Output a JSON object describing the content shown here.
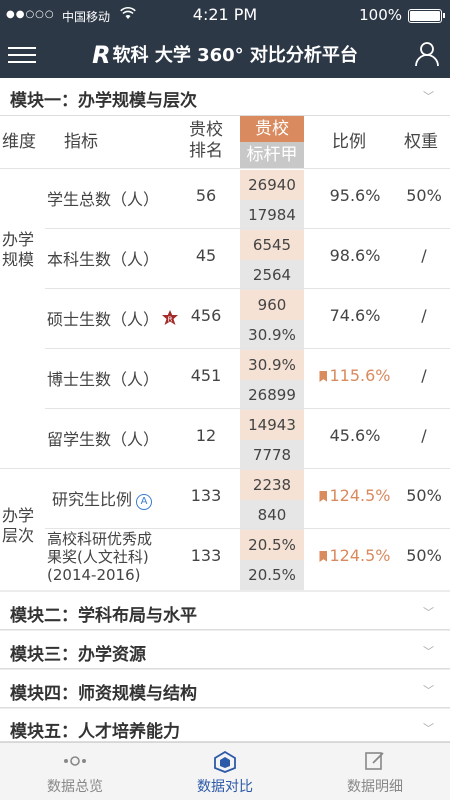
{
  "status_bar": {
    "signal": "●●○○○",
    "carrier": "中国移动",
    "time": "4:21 PM",
    "battery": "100%"
  },
  "nav": {
    "logo_letter": "R",
    "title": "软科 大学 360° 对比分析平台"
  },
  "modules": [
    {
      "title": "模块一：办学规模与层次"
    },
    {
      "title": "模块二：学科布局与水平"
    },
    {
      "title": "模块三：办学资源"
    },
    {
      "title": "模块四：师资规模与结构"
    },
    {
      "title": "模块五：人才培养能力"
    }
  ],
  "table": {
    "headers": {
      "dimension": "维度",
      "indicator": "指标",
      "rank_line1": "贵校",
      "rank_line2": "排名",
      "ours": "贵校",
      "benchmark": "标杆甲",
      "ratio": "比例",
      "weight": "权重"
    },
    "dimensions": [
      {
        "line1": "办学",
        "line2": "规模"
      },
      {
        "line1": "办学",
        "line2": "层次"
      }
    ],
    "rows": [
      {
        "indicator": "学生总数（人）",
        "rank": "56",
        "ours": "26940",
        "benchmark": "17984",
        "ratio": "95.6%",
        "weight": "50%"
      },
      {
        "indicator": "本科生数（人）",
        "rank": "45",
        "ours": "6545",
        "benchmark": "2564",
        "ratio": "98.6%",
        "weight": "/"
      },
      {
        "indicator": "硕士生数（人）",
        "rank": "456",
        "ours": "960",
        "benchmark": "30.9%",
        "ratio": "74.6%",
        "weight": "/"
      },
      {
        "indicator": "博士生数（人）",
        "rank": "451",
        "ours": "30.9%",
        "benchmark": "26899",
        "ratio": "115.6%",
        "weight": "/"
      },
      {
        "indicator": "留学生数（人）",
        "rank": "12",
        "ours": "14943",
        "benchmark": "7778",
        "ratio": "45.6%",
        "weight": "/"
      },
      {
        "indicator": "研究生比例",
        "rank": "133",
        "ours": "2238",
        "benchmark": "840",
        "ratio": "124.5%",
        "weight": "50%"
      },
      {
        "indicator_line1": "高校科研优秀成",
        "indicator_line2": "果奖(人文社科)",
        "indicator_line3": "(2014-2016)",
        "rank": "133",
        "ours": "20.5%",
        "benchmark": "20.5%",
        "ratio": "124.5%",
        "weight": "50%"
      }
    ],
    "badge_letters": {
      "red": "R",
      "blue": "A"
    }
  },
  "tabs": [
    {
      "label": "数据总览"
    },
    {
      "label": "数据对比"
    },
    {
      "label": "数据明细"
    }
  ],
  "colors": {
    "header_bg": "#2d3847",
    "accent_orange": "#d98a5e",
    "ours_bg": "#f5e2d5",
    "bench_bg": "#e6e6e6",
    "active_tab": "#2d5aa8"
  }
}
